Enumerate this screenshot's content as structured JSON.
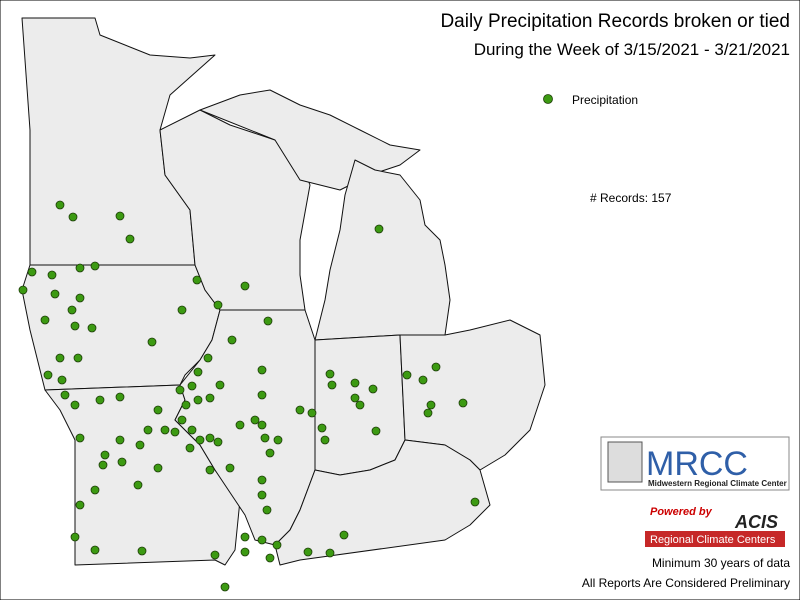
{
  "header": {
    "title": "Daily Precipitation Records broken or tied",
    "subtitle": "During the Week of 3/15/2021 - 3/21/2021"
  },
  "legend": {
    "label": "Precipitation"
  },
  "records": "# Records: 157",
  "logo": {
    "name": "MRCC",
    "full_name": "Midwestern Regional Climate Center"
  },
  "acis": {
    "powered_by": "Powered by",
    "name": "ACIS",
    "subtitle": "Regional Climate Centers"
  },
  "notes": [
    "Minimum 30 years of data",
    "All Reports Are Considered Preliminary"
  ]
}
